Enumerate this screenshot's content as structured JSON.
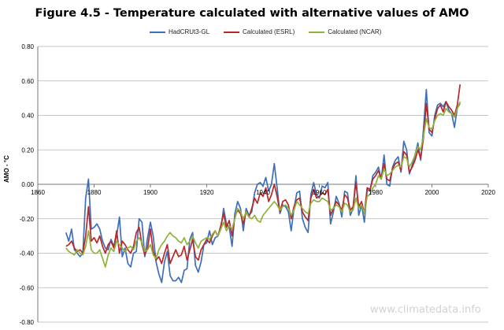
{
  "chart_data": {
    "type": "line",
    "title": "Figure 4.5 - Temperature calculated with alternative values of AMO",
    "ylabel": "AMO - °C",
    "xlabel": "",
    "xlim": [
      1860,
      2020
    ],
    "ylim": [
      -0.8,
      0.8
    ],
    "grid": true,
    "legend_position": "top",
    "x_ticks": [
      "1860",
      "1880",
      "1900",
      "1920",
      "1940",
      "1960",
      "1980",
      "2000",
      "2020"
    ],
    "y_ticks": [
      "0.80",
      "0.60",
      "0.40",
      "0.20",
      "0.00",
      "-0.20",
      "-0.40",
      "-0.60",
      "-0.80"
    ],
    "x": [
      1870,
      1871,
      1872,
      1873,
      1874,
      1875,
      1876,
      1877,
      1878,
      1879,
      1880,
      1881,
      1882,
      1883,
      1884,
      1885,
      1886,
      1887,
      1888,
      1889,
      1890,
      1891,
      1892,
      1893,
      1894,
      1895,
      1896,
      1897,
      1898,
      1899,
      1900,
      1901,
      1902,
      1903,
      1904,
      1905,
      1906,
      1907,
      1908,
      1909,
      1910,
      1911,
      1912,
      1913,
      1914,
      1915,
      1916,
      1917,
      1918,
      1919,
      1920,
      1921,
      1922,
      1923,
      1924,
      1925,
      1926,
      1927,
      1928,
      1929,
      1930,
      1931,
      1932,
      1933,
      1934,
      1935,
      1936,
      1937,
      1938,
      1939,
      1940,
      1941,
      1942,
      1943,
      1944,
      1945,
      1946,
      1947,
      1948,
      1949,
      1950,
      1951,
      1952,
      1953,
      1954,
      1955,
      1956,
      1957,
      1958,
      1959,
      1960,
      1961,
      1962,
      1963,
      1964,
      1965,
      1966,
      1967,
      1968,
      1969,
      1970,
      1971,
      1972,
      1973,
      1974,
      1975,
      1976,
      1977,
      1978,
      1979,
      1980,
      1981,
      1982,
      1983,
      1984,
      1985,
      1986,
      1987,
      1988,
      1989,
      1990,
      1991,
      1992,
      1993,
      1994,
      1995,
      1996,
      1997,
      1998,
      1999,
      2000,
      2001,
      2002,
      2003,
      2004,
      2005,
      2006,
      2007,
      2008,
      2009,
      2010
    ],
    "series": [
      {
        "name": "HadCRUt3-GL",
        "color": "#3f6fb8",
        "values": [
          -0.28,
          -0.33,
          -0.26,
          -0.38,
          -0.4,
          -0.42,
          -0.4,
          -0.08,
          0.03,
          -0.26,
          -0.25,
          -0.23,
          -0.26,
          -0.33,
          -0.37,
          -0.38,
          -0.32,
          -0.36,
          -0.3,
          -0.19,
          -0.42,
          -0.37,
          -0.46,
          -0.48,
          -0.4,
          -0.39,
          -0.2,
          -0.22,
          -0.42,
          -0.31,
          -0.22,
          -0.3,
          -0.45,
          -0.52,
          -0.57,
          -0.45,
          -0.39,
          -0.53,
          -0.56,
          -0.56,
          -0.54,
          -0.57,
          -0.5,
          -0.49,
          -0.32,
          -0.28,
          -0.47,
          -0.51,
          -0.45,
          -0.35,
          -0.34,
          -0.27,
          -0.35,
          -0.31,
          -0.3,
          -0.26,
          -0.14,
          -0.23,
          -0.25,
          -0.36,
          -0.17,
          -0.1,
          -0.14,
          -0.27,
          -0.14,
          -0.18,
          -0.16,
          -0.05,
          0.0,
          0.01,
          -0.01,
          0.04,
          -0.04,
          0.0,
          0.12,
          -0.02,
          -0.17,
          -0.12,
          -0.13,
          -0.16,
          -0.27,
          -0.14,
          -0.05,
          -0.04,
          -0.2,
          -0.25,
          -0.28,
          -0.06,
          0.01,
          -0.06,
          -0.08,
          -0.01,
          -0.02,
          0.01,
          -0.23,
          -0.16,
          -0.07,
          -0.11,
          -0.19,
          -0.04,
          -0.05,
          -0.18,
          -0.14,
          0.05,
          -0.18,
          -0.12,
          -0.22,
          -0.03,
          -0.04,
          0.05,
          0.07,
          0.1,
          0.03,
          0.17,
          0.0,
          -0.01,
          0.1,
          0.14,
          0.16,
          0.07,
          0.25,
          0.2,
          0.06,
          0.11,
          0.17,
          0.24,
          0.14,
          0.32,
          0.55,
          0.3,
          0.28,
          0.4,
          0.46,
          0.47,
          0.45,
          0.48,
          0.43,
          0.41,
          0.33,
          0.44,
          0.47
        ]
      },
      {
        "name": "Calculated (ESRL)",
        "color": "#b8282d",
        "values": [
          -0.36,
          -0.35,
          -0.33,
          -0.37,
          -0.39,
          -0.38,
          -0.4,
          -0.3,
          -0.13,
          -0.33,
          -0.31,
          -0.34,
          -0.3,
          -0.36,
          -0.4,
          -0.35,
          -0.33,
          -0.37,
          -0.27,
          -0.4,
          -0.33,
          -0.35,
          -0.38,
          -0.4,
          -0.36,
          -0.28,
          -0.25,
          -0.35,
          -0.41,
          -0.37,
          -0.26,
          -0.39,
          -0.44,
          -0.42,
          -0.46,
          -0.4,
          -0.35,
          -0.46,
          -0.42,
          -0.38,
          -0.42,
          -0.41,
          -0.36,
          -0.44,
          -0.38,
          -0.32,
          -0.42,
          -0.44,
          -0.38,
          -0.35,
          -0.32,
          -0.34,
          -0.3,
          -0.27,
          -0.3,
          -0.24,
          -0.17,
          -0.25,
          -0.21,
          -0.3,
          -0.19,
          -0.15,
          -0.17,
          -0.23,
          -0.16,
          -0.19,
          -0.14,
          -0.08,
          -0.11,
          -0.05,
          -0.07,
          -0.02,
          -0.1,
          -0.06,
          0.0,
          -0.07,
          -0.16,
          -0.1,
          -0.09,
          -0.12,
          -0.2,
          -0.13,
          -0.09,
          -0.08,
          -0.16,
          -0.19,
          -0.21,
          -0.08,
          -0.03,
          -0.08,
          -0.07,
          -0.05,
          -0.06,
          -0.03,
          -0.18,
          -0.14,
          -0.1,
          -0.12,
          -0.15,
          -0.06,
          -0.08,
          -0.15,
          -0.13,
          0.01,
          -0.13,
          -0.1,
          -0.17,
          -0.02,
          -0.03,
          0.03,
          0.05,
          0.08,
          0.03,
          0.12,
          0.03,
          0.02,
          0.09,
          0.12,
          0.13,
          0.08,
          0.19,
          0.17,
          0.07,
          0.1,
          0.14,
          0.2,
          0.15,
          0.27,
          0.47,
          0.32,
          0.3,
          0.38,
          0.44,
          0.46,
          0.42,
          0.48,
          0.45,
          0.43,
          0.4,
          0.46,
          0.58
        ]
      },
      {
        "name": "Calculated (NCAR)",
        "color": "#8fb23c",
        "values": [
          -0.37,
          -0.39,
          -0.4,
          -0.41,
          -0.38,
          -0.4,
          -0.41,
          -0.36,
          -0.27,
          -0.38,
          -0.4,
          -0.4,
          -0.38,
          -0.43,
          -0.48,
          -0.41,
          -0.37,
          -0.39,
          -0.33,
          -0.35,
          -0.37,
          -0.39,
          -0.37,
          -0.36,
          -0.38,
          -0.33,
          -0.31,
          -0.34,
          -0.39,
          -0.38,
          -0.35,
          -0.41,
          -0.43,
          -0.38,
          -0.35,
          -0.33,
          -0.3,
          -0.28,
          -0.3,
          -0.31,
          -0.33,
          -0.34,
          -0.31,
          -0.35,
          -0.33,
          -0.3,
          -0.34,
          -0.37,
          -0.33,
          -0.32,
          -0.31,
          -0.32,
          -0.29,
          -0.27,
          -0.3,
          -0.26,
          -0.22,
          -0.27,
          -0.24,
          -0.26,
          -0.2,
          -0.14,
          -0.16,
          -0.2,
          -0.16,
          -0.19,
          -0.2,
          -0.18,
          -0.21,
          -0.22,
          -0.18,
          -0.16,
          -0.14,
          -0.12,
          -0.1,
          -0.12,
          -0.15,
          -0.13,
          -0.12,
          -0.14,
          -0.18,
          -0.15,
          -0.1,
          -0.12,
          -0.14,
          -0.16,
          -0.17,
          -0.11,
          -0.09,
          -0.1,
          -0.1,
          -0.08,
          -0.09,
          -0.1,
          -0.15,
          -0.14,
          -0.12,
          -0.13,
          -0.16,
          -0.11,
          -0.12,
          -0.16,
          -0.15,
          -0.08,
          -0.14,
          -0.12,
          -0.17,
          -0.07,
          -0.06,
          -0.02,
          0.0,
          0.05,
          0.03,
          0.09,
          0.05,
          0.06,
          0.08,
          0.1,
          0.11,
          0.1,
          0.16,
          0.15,
          0.1,
          0.13,
          0.17,
          0.22,
          0.2,
          0.28,
          0.38,
          0.33,
          0.32,
          0.37,
          0.4,
          0.41,
          0.4,
          0.44,
          0.42,
          0.41,
          0.39,
          0.44,
          0.48
        ]
      }
    ]
  },
  "watermark": "www.climatedata.info"
}
